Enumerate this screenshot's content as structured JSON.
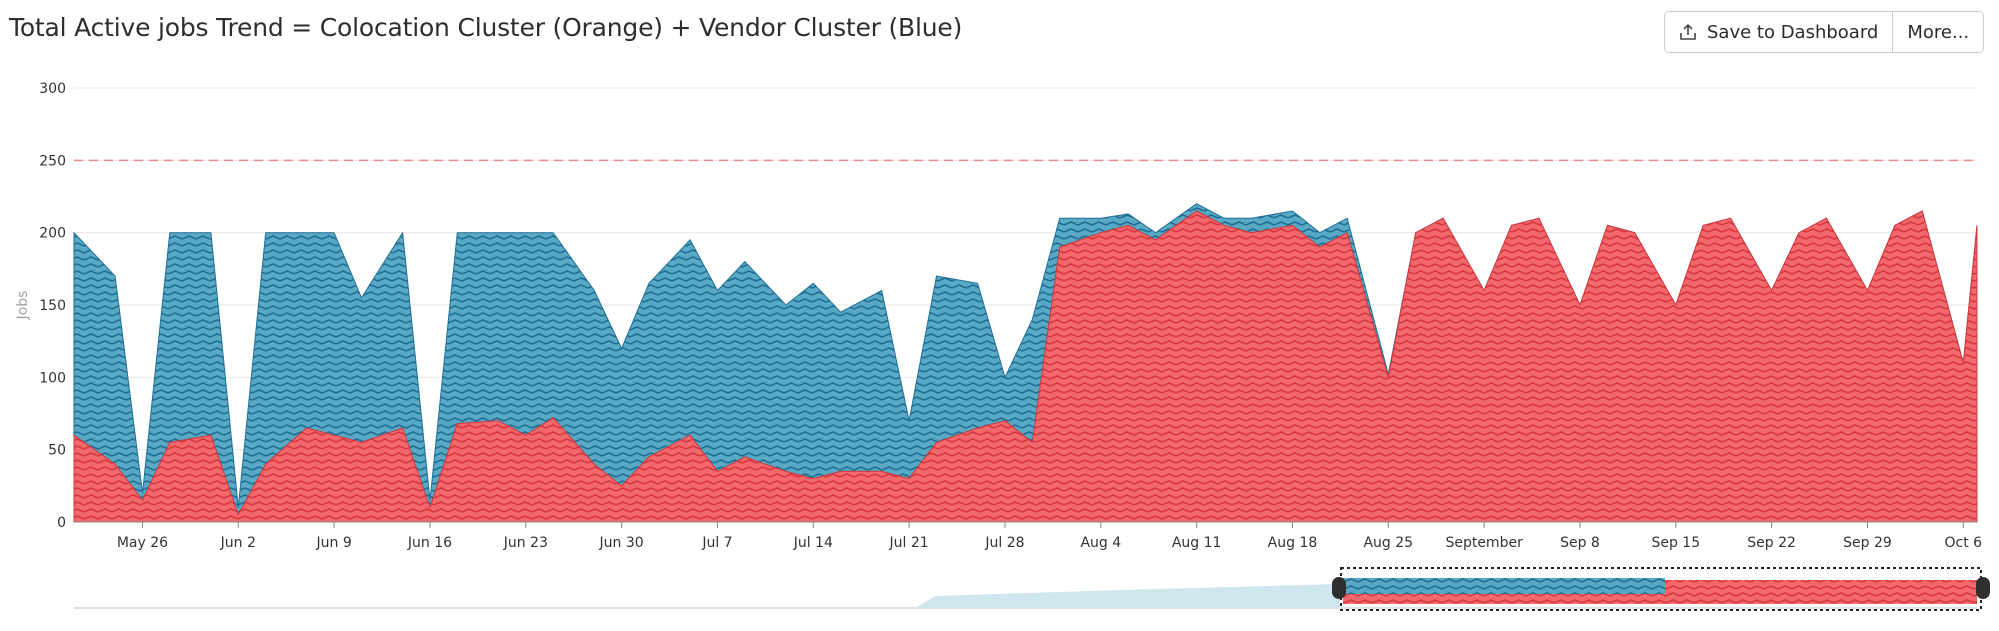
{
  "header": {
    "title": "Total Active jobs Trend = Colocation Cluster (Orange) + Vendor Cluster (Blue)",
    "save_label": "Save to Dashboard",
    "more_label": "More...",
    "save_icon": "share-upload-icon"
  },
  "colors": {
    "colocation_dark": "#d6373c",
    "colocation_light": "#f2686c",
    "vendor_dark": "#1f6f95",
    "vendor_light": "#5aa9c4",
    "threshold": "#f08a8a",
    "grid": "#e6e6e6"
  },
  "chart_data": {
    "type": "area",
    "stacked": true,
    "ylabel": "Jobs",
    "ylim": [
      0,
      300
    ],
    "yticks": [
      0,
      50,
      100,
      150,
      200,
      250,
      300
    ],
    "x_range": [
      "2024-05-21",
      "2024-10-07"
    ],
    "xticks": [
      {
        "date": "2024-05-26",
        "label": "May 26"
      },
      {
        "date": "2024-06-02",
        "label": "Jun 2"
      },
      {
        "date": "2024-06-09",
        "label": "Jun 9"
      },
      {
        "date": "2024-06-16",
        "label": "Jun 16"
      },
      {
        "date": "2024-06-23",
        "label": "Jun 23"
      },
      {
        "date": "2024-06-30",
        "label": "Jun 30"
      },
      {
        "date": "2024-07-07",
        "label": "Jul 7"
      },
      {
        "date": "2024-07-14",
        "label": "Jul 14"
      },
      {
        "date": "2024-07-21",
        "label": "Jul 21"
      },
      {
        "date": "2024-07-28",
        "label": "Jul 28"
      },
      {
        "date": "2024-08-04",
        "label": "Aug 4"
      },
      {
        "date": "2024-08-11",
        "label": "Aug 11"
      },
      {
        "date": "2024-08-18",
        "label": "Aug 18"
      },
      {
        "date": "2024-08-25",
        "label": "Aug 25"
      },
      {
        "date": "2024-09-01",
        "label": "September"
      },
      {
        "date": "2024-09-08",
        "label": "Sep 8"
      },
      {
        "date": "2024-09-15",
        "label": "Sep 15"
      },
      {
        "date": "2024-09-22",
        "label": "Sep 22"
      },
      {
        "date": "2024-09-29",
        "label": "Sep 29"
      },
      {
        "date": "2024-10-06",
        "label": "Oct 6"
      }
    ],
    "threshold": 250,
    "grid": true,
    "series": [
      {
        "name": "Colocation Cluster",
        "color": "#ef5350",
        "x": [
          "2024-05-21",
          "2024-05-24",
          "2024-05-26",
          "2024-05-28",
          "2024-05-31",
          "2024-06-02",
          "2024-06-04",
          "2024-06-07",
          "2024-06-09",
          "2024-06-11",
          "2024-06-14",
          "2024-06-16",
          "2024-06-18",
          "2024-06-21",
          "2024-06-23",
          "2024-06-25",
          "2024-06-28",
          "2024-06-30",
          "2024-07-02",
          "2024-07-05",
          "2024-07-07",
          "2024-07-09",
          "2024-07-12",
          "2024-07-14",
          "2024-07-16",
          "2024-07-19",
          "2024-07-21",
          "2024-07-23",
          "2024-07-26",
          "2024-07-28",
          "2024-07-30",
          "2024-08-01",
          "2024-08-04",
          "2024-08-06",
          "2024-08-08",
          "2024-08-11",
          "2024-08-13",
          "2024-08-15",
          "2024-08-18",
          "2024-08-20",
          "2024-08-22",
          "2024-08-25",
          "2024-08-27",
          "2024-08-29",
          "2024-09-01",
          "2024-09-03",
          "2024-09-05",
          "2024-09-08",
          "2024-09-10",
          "2024-09-12",
          "2024-09-15",
          "2024-09-17",
          "2024-09-19",
          "2024-09-22",
          "2024-09-24",
          "2024-09-26",
          "2024-09-29",
          "2024-10-01",
          "2024-10-03",
          "2024-10-06",
          "2024-10-07"
        ],
        "values": [
          60,
          40,
          15,
          55,
          60,
          5,
          40,
          65,
          60,
          55,
          65,
          10,
          68,
          70,
          60,
          72,
          40,
          25,
          45,
          60,
          35,
          45,
          35,
          30,
          35,
          35,
          30,
          55,
          65,
          70,
          55,
          190,
          200,
          205,
          195,
          215,
          205,
          200,
          205,
          190,
          200,
          100,
          200,
          210,
          160,
          205,
          210,
          150,
          205,
          200,
          150,
          205,
          210,
          160,
          200,
          210,
          160,
          205,
          215,
          110,
          205
        ]
      },
      {
        "name": "Vendor Cluster",
        "color": "#4fa3c7",
        "x": [
          "2024-05-21",
          "2024-05-24",
          "2024-05-26",
          "2024-05-28",
          "2024-05-31",
          "2024-06-02",
          "2024-06-04",
          "2024-06-07",
          "2024-06-09",
          "2024-06-11",
          "2024-06-14",
          "2024-06-16",
          "2024-06-18",
          "2024-06-21",
          "2024-06-23",
          "2024-06-25",
          "2024-06-28",
          "2024-06-30",
          "2024-07-02",
          "2024-07-05",
          "2024-07-07",
          "2024-07-09",
          "2024-07-12",
          "2024-07-14",
          "2024-07-16",
          "2024-07-19",
          "2024-07-21",
          "2024-07-23",
          "2024-07-26",
          "2024-07-28",
          "2024-07-30",
          "2024-08-01",
          "2024-08-04",
          "2024-08-06",
          "2024-08-08",
          "2024-08-11",
          "2024-08-13",
          "2024-08-15",
          "2024-08-18",
          "2024-08-20",
          "2024-08-22",
          "2024-08-25",
          "2024-08-27",
          "2024-08-29",
          "2024-09-01",
          "2024-09-03",
          "2024-09-05",
          "2024-09-08",
          "2024-09-10",
          "2024-09-12",
          "2024-09-15",
          "2024-09-17",
          "2024-09-19",
          "2024-09-22",
          "2024-09-24",
          "2024-09-26",
          "2024-09-29",
          "2024-10-01",
          "2024-10-03",
          "2024-10-06",
          "2024-10-07"
        ],
        "values": [
          140,
          130,
          5,
          145,
          140,
          5,
          160,
          135,
          140,
          100,
          135,
          5,
          132,
          130,
          140,
          128,
          120,
          95,
          120,
          135,
          125,
          135,
          115,
          135,
          110,
          125,
          40,
          115,
          100,
          30,
          85,
          20,
          10,
          8,
          5,
          5,
          5,
          10,
          10,
          10,
          10,
          2,
          0,
          0,
          0,
          0,
          0,
          0,
          0,
          0,
          0,
          0,
          0,
          0,
          0,
          0,
          0,
          0,
          0,
          0,
          0
        ]
      }
    ]
  }
}
